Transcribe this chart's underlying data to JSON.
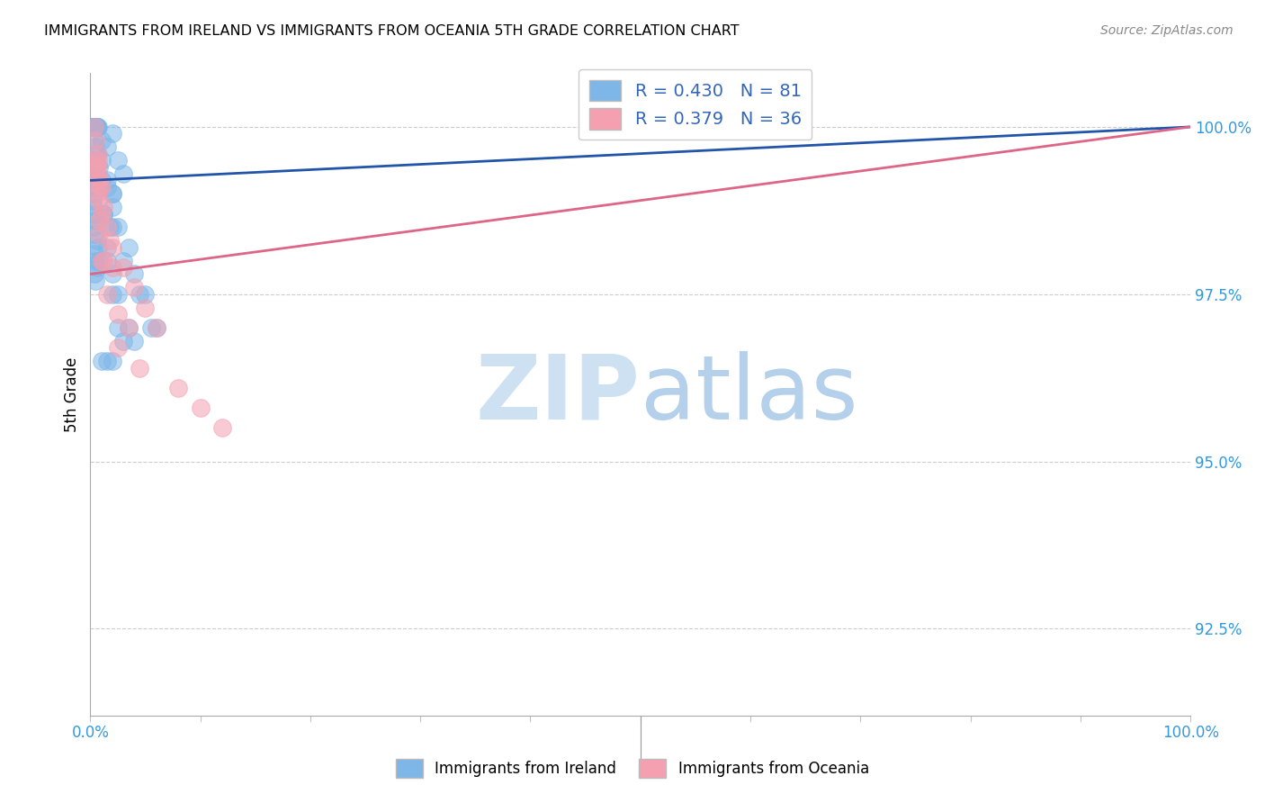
{
  "title": "IMMIGRANTS FROM IRELAND VS IMMIGRANTS FROM OCEANIA 5TH GRADE CORRELATION CHART",
  "source": "Source: ZipAtlas.com",
  "ylabel": "5th Grade",
  "xlim": [
    0,
    100
  ],
  "ylim": [
    91.2,
    100.8
  ],
  "yticks": [
    92.5,
    95.0,
    97.5,
    100.0
  ],
  "R_blue": 0.43,
  "N_blue": 81,
  "R_pink": 0.379,
  "N_pink": 36,
  "blue_color": "#7EB6E8",
  "pink_color": "#F4A0B0",
  "line_blue_color": "#2255AA",
  "line_pink_color": "#DD6688",
  "watermark_zip": "ZIP",
  "watermark_atlas": "atlas",
  "blue_points_x": [
    0.3,
    0.4,
    0.5,
    0.6,
    0.4,
    0.5,
    0.6,
    0.7,
    0.5,
    0.3,
    0.4,
    0.2,
    0.3,
    0.4,
    0.5,
    0.6,
    0.3,
    0.4,
    0.5,
    0.3,
    0.4,
    0.5,
    0.6,
    0.4,
    0.5,
    0.3,
    0.4,
    0.5,
    0.3,
    0.4,
    0.2,
    0.3,
    0.4,
    0.5,
    0.3,
    0.5,
    0.6,
    0.7,
    0.4,
    0.5,
    0.6,
    0.4,
    0.5,
    1.0,
    1.5,
    2.0,
    2.5,
    3.0,
    1.5,
    2.0,
    1.0,
    1.2,
    0.8,
    2.5,
    3.5,
    4.0,
    5.0,
    6.0,
    1.5,
    2.0,
    2.5,
    3.0,
    2.0,
    1.8,
    3.5,
    4.5,
    5.5,
    1.5,
    2.0,
    1.5,
    2.0,
    2.5,
    1.0,
    1.5,
    2.0,
    4.0,
    3.0,
    2.0,
    1.2,
    1.0,
    0.8
  ],
  "blue_points_y": [
    100.0,
    100.0,
    100.0,
    100.0,
    100.0,
    100.0,
    100.0,
    100.0,
    100.0,
    100.0,
    100.0,
    100.0,
    100.0,
    100.0,
    100.0,
    100.0,
    100.0,
    100.0,
    100.0,
    100.0,
    99.8,
    99.7,
    99.6,
    99.5,
    99.5,
    99.4,
    99.3,
    99.2,
    99.1,
    99.0,
    98.9,
    98.8,
    98.7,
    98.6,
    98.5,
    98.4,
    98.3,
    98.2,
    98.1,
    98.0,
    97.9,
    97.8,
    97.7,
    99.8,
    99.7,
    99.9,
    99.5,
    99.3,
    99.1,
    98.8,
    99.2,
    98.7,
    99.4,
    98.5,
    98.2,
    97.8,
    97.5,
    97.0,
    98.0,
    97.5,
    97.0,
    96.8,
    99.0,
    98.5,
    97.0,
    97.5,
    97.0,
    98.2,
    97.8,
    99.2,
    98.5,
    97.5,
    96.5,
    96.5,
    96.5,
    96.8,
    98.0,
    99.0,
    98.7,
    99.5,
    98.0
  ],
  "pink_points_x": [
    0.4,
    0.5,
    0.7,
    0.6,
    1.0,
    0.8,
    1.5,
    2.0,
    3.0,
    4.0,
    5.0,
    6.0,
    0.5,
    0.7,
    1.2,
    0.9,
    0.6,
    0.8,
    1.0,
    1.5,
    2.0,
    0.6,
    0.8,
    2.5,
    1.8,
    1.2,
    10.0,
    12.0,
    8.0,
    3.5,
    0.7,
    0.5,
    0.8,
    1.0,
    2.5,
    4.5
  ],
  "pink_points_y": [
    100.0,
    99.8,
    99.6,
    99.3,
    99.1,
    98.9,
    98.5,
    98.2,
    97.9,
    97.6,
    97.3,
    97.0,
    99.5,
    99.2,
    98.8,
    98.6,
    99.0,
    98.4,
    98.0,
    97.5,
    97.9,
    99.4,
    99.2,
    97.2,
    98.3,
    98.0,
    95.8,
    95.5,
    96.1,
    97.0,
    99.5,
    99.4,
    99.1,
    98.7,
    96.7,
    96.4
  ],
  "blue_line_x0": 0.0,
  "blue_line_y0": 99.2,
  "blue_line_x1": 100.0,
  "blue_line_y1": 100.0,
  "pink_line_x0": 0.0,
  "pink_line_y0": 97.8,
  "pink_line_x1": 100.0,
  "pink_line_y1": 100.0
}
